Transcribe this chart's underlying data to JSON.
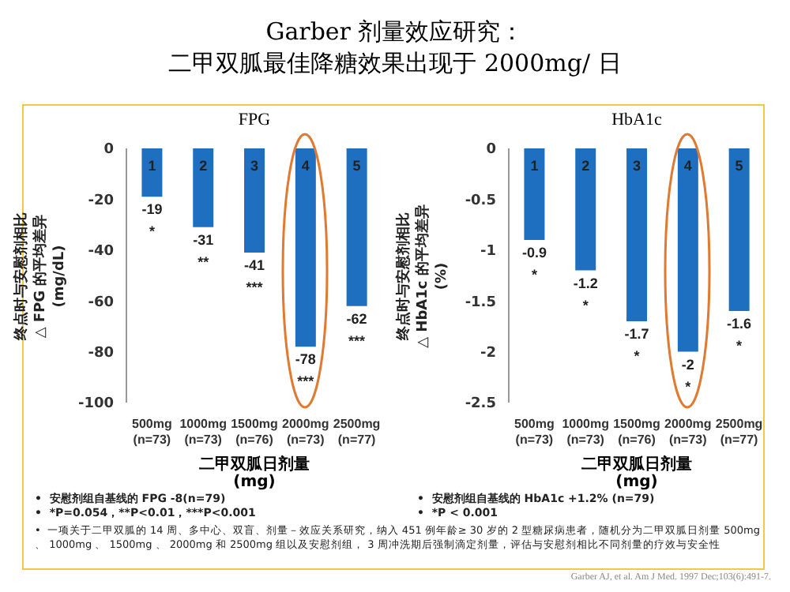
{
  "chart_data": [
    {
      "type": "bar",
      "title": "Garber 剂量效应研究：二甲双胍最佳降糖效果出现于 2000mg/ 日",
      "subtitle": "FPG",
      "ylabel": "终点时与安慰剂相比\n△ FPG 的平均差异\n(mg/dL)",
      "xlabel": "二甲双胍日剂量\n(mg)",
      "categories": [
        "500mg\n(n=73)",
        "1000mg\n(n=73)",
        "1500mg\n(n=76)",
        "2000mg\n(n=73)",
        "2500mg\n(n=77)"
      ],
      "values": [
        -19,
        -31,
        -41,
        -78,
        -62
      ],
      "color": "#1f6fc0",
      "data_labels": true,
      "ylim": [
        -100,
        0
      ],
      "yticks": [
        0,
        -20,
        -40,
        -60,
        -80,
        -100
      ],
      "annotations": [
        "•  安慰剂组自基线的 FPG -8(n=79)",
        "•  *P=0.054，**P<0.01，***P<0.001",
        "•  一项关于二甲双胍的 14 周、多中心、双盲、剂量－效应关系研究，纳入 451 例年龄≥ 30 岁的 2 型糖尿病患者，随机分为二甲双胍日剂量 500mg 、 1000mg 、 1500mg 、 2000mg 和 2500mg 组以及安慰剂组， 3 周冲洗期后强制滴定剂量，评估与安慰剂相比不同剂量的疗效与安全性",
        "Garber AJ, et al. Am J Med. 1997 Dec;103(6):491-7.",
        "1",
        "2",
        "3",
        "4",
        "5",
        "*",
        "**",
        "***",
        "***",
        "***"
      ]
    },
    {
      "type": "bar",
      "title": "HbA1c",
      "ylabel": "终点时与安慰剂相比\n△ HbA1c 的平均差异\n(%)",
      "xlabel": "二甲双胍日剂量\n(mg)",
      "categories": [
        "500mg\n(n=73)",
        "1000mg\n(n=73)",
        "1500mg\n(n=76)",
        "2000mg\n(n=73)",
        "2500mg\n(n=77)"
      ],
      "values": [
        -0.9,
        -1.2,
        -1.7,
        -2,
        -1.6
      ],
      "color": "#1f6fc0",
      "data_labels": true,
      "ylim": [
        -2.5,
        0
      ],
      "yticks": [
        0,
        -0.5,
        -1,
        -1.5,
        -2,
        -2.5
      ],
      "annotations": [
        "•  安慰剂组自基线的 HbA1c +1.2% (n=79)",
        "•  *P < 0.001",
        "1",
        "2",
        "3",
        "4",
        "5",
        "*",
        "*",
        "*",
        "*",
        "*"
      ]
    }
  ]
}
